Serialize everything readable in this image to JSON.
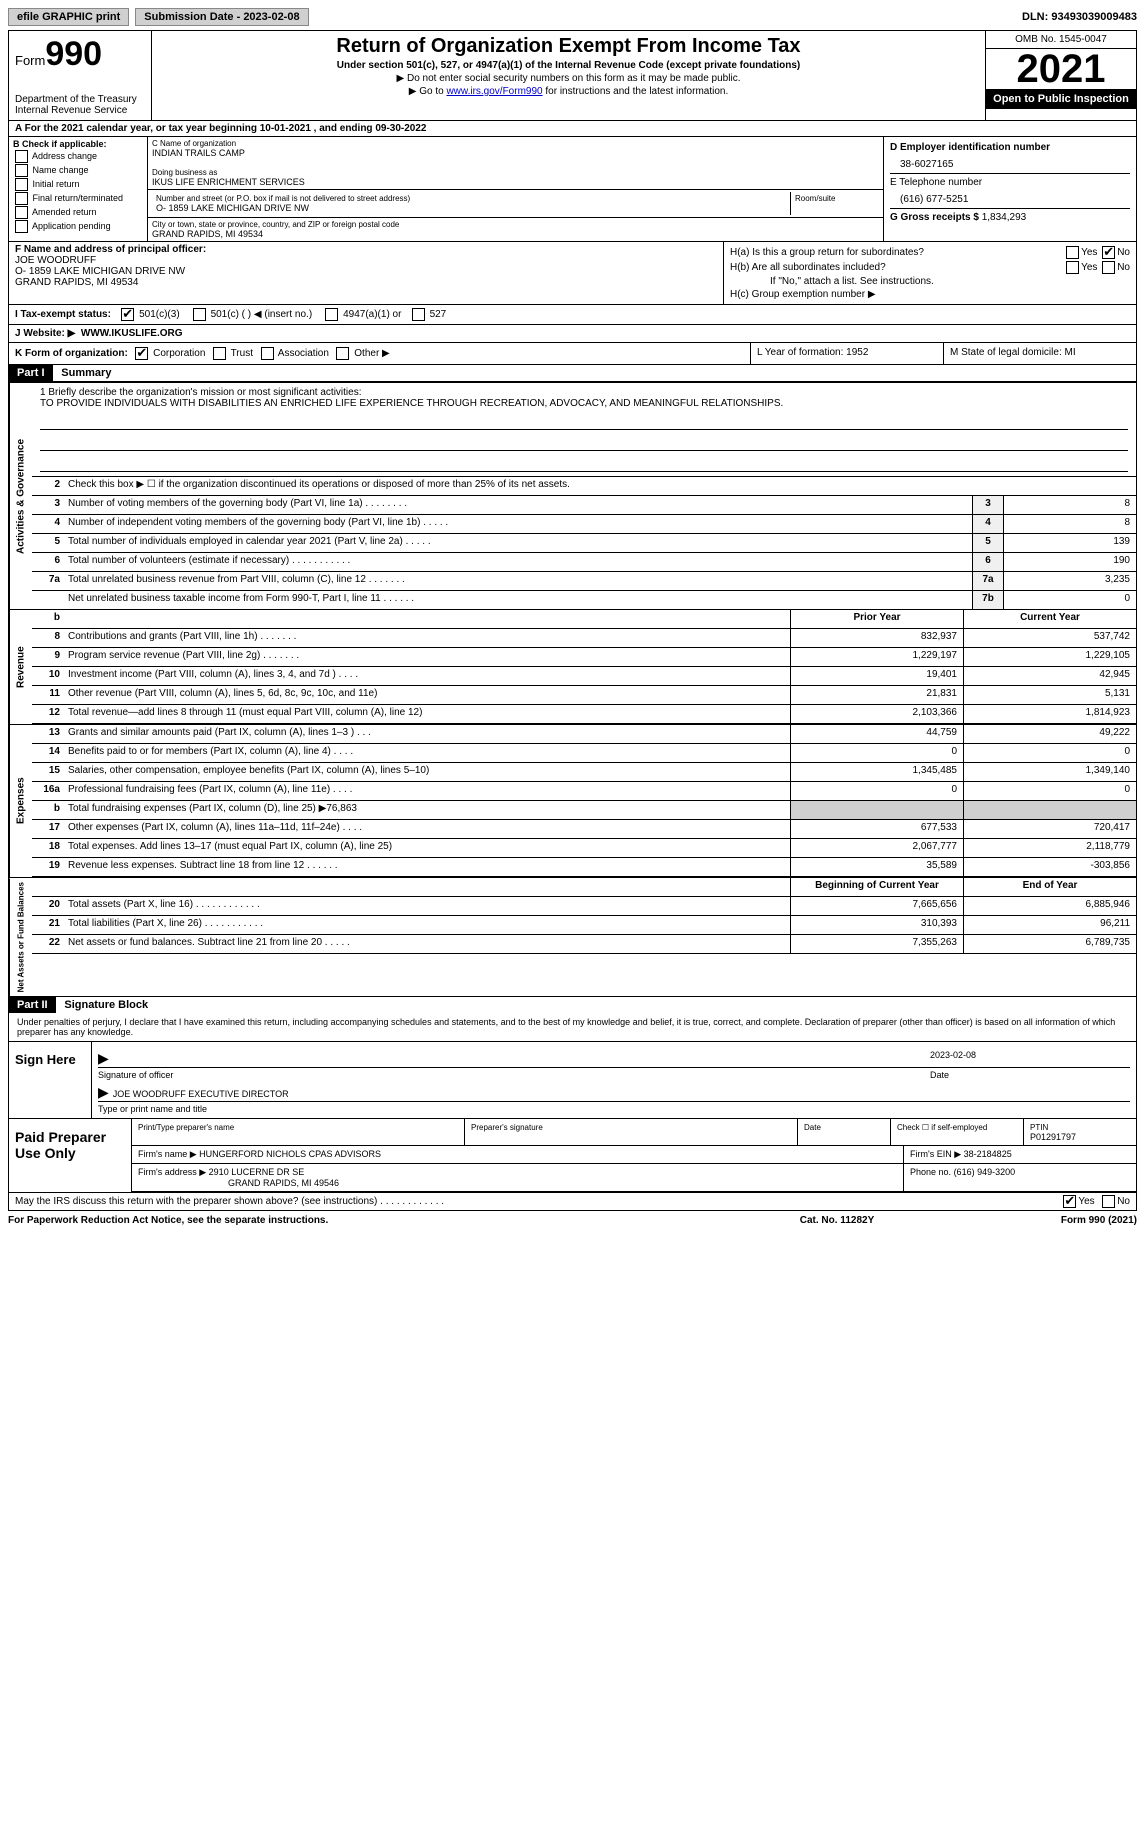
{
  "topbar": {
    "efile": "efile GRAPHIC print",
    "submission_label": "Submission Date - 2023-02-08",
    "dln": "DLN: 93493039009483"
  },
  "header": {
    "form_prefix": "Form",
    "form_num": "990",
    "dept": "Department of the Treasury Internal Revenue Service",
    "title": "Return of Organization Exempt From Income Tax",
    "subtitle": "Under section 501(c), 527, or 4947(a)(1) of the Internal Revenue Code (except private foundations)",
    "note1": "▶ Do not enter social security numbers on this form as it may be made public.",
    "note2_pre": "▶ Go to ",
    "note2_link": "www.irs.gov/Form990",
    "note2_post": " for instructions and the latest information.",
    "omb": "OMB No. 1545-0047",
    "year": "2021",
    "inspection": "Open to Public Inspection"
  },
  "period": "A For the 2021 calendar year, or tax year beginning 10-01-2021    , and ending 09-30-2022",
  "checkB": {
    "label": "B Check if applicable:",
    "opts": [
      "Address change",
      "Name change",
      "Initial return",
      "Final return/terminated",
      "Amended return",
      "Application pending"
    ]
  },
  "orgC": {
    "name_label": "C Name of organization",
    "name": "INDIAN TRAILS CAMP",
    "dba_label": "Doing business as",
    "dba": "IKUS LIFE ENRICHMENT SERVICES",
    "street_label": "Number and street (or P.O. box if mail is not delivered to street address)",
    "street": "O- 1859 LAKE MICHIGAN DRIVE NW",
    "room_label": "Room/suite",
    "city_label": "City or town, state or province, country, and ZIP or foreign postal code",
    "city": "GRAND RAPIDS, MI  49534"
  },
  "colD": {
    "ein_label": "D Employer identification number",
    "ein": "38-6027165",
    "tel_label": "E Telephone number",
    "tel": "(616) 677-5251",
    "gross_label": "G Gross receipts $",
    "gross": "1,834,293"
  },
  "sectionF": {
    "label": "F  Name and address of principal officer:",
    "name": "JOE WOODRUFF",
    "addr1": "O- 1859 LAKE MICHIGAN DRIVE NW",
    "addr2": "GRAND RAPIDS, MI  49534"
  },
  "sectionH": {
    "ha": "H(a)  Is this a group return for subordinates?",
    "hb": "H(b)  Are all subordinates included?",
    "hb_note": "If \"No,\" attach a list. See instructions.",
    "hc": "H(c)  Group exemption number ▶",
    "yes": "Yes",
    "no": "No"
  },
  "taxStatus": {
    "label": "I   Tax-exempt status:",
    "o1": "501(c)(3)",
    "o2": "501(c) (  ) ◀ (insert no.)",
    "o3": "4947(a)(1) or",
    "o4": "527"
  },
  "website": {
    "label": "J   Website: ▶",
    "val": "WWW.IKUSLIFE.ORG"
  },
  "kRow": {
    "k": "K Form of organization:",
    "opts": [
      "Corporation",
      "Trust",
      "Association",
      "Other ▶"
    ],
    "l": "L Year of formation: 1952",
    "m": "M State of legal domicile: MI"
  },
  "part1": {
    "header": "Part I",
    "title": "Summary",
    "mission_label": "1   Briefly describe the organization's mission or most significant activities:",
    "mission": "TO PROVIDE INDIVIDUALS WITH DISABILITIES AN ENRICHED LIFE EXPERIENCE THROUGH RECREATION, ADVOCACY, AND MEANINGFUL RELATIONSHIPS.",
    "line2": "Check this box ▶ ☐  if the organization discontinued its operations or disposed of more than 25% of its net assets.",
    "sideA": "Activities & Governance",
    "sideR": "Revenue",
    "sideE": "Expenses",
    "sideN": "Net Assets or Fund Balances"
  },
  "govLines": [
    {
      "n": "3",
      "t": "Number of voting members of the governing body (Part VI, line 1a)   .   .   .   .   .   .   .   .",
      "b": "3",
      "v": "8"
    },
    {
      "n": "4",
      "t": "Number of independent voting members of the governing body (Part VI, line 1b)   .   .   .   .   .",
      "b": "4",
      "v": "8"
    },
    {
      "n": "5",
      "t": "Total number of individuals employed in calendar year 2021 (Part V, line 2a)   .   .   .   .   .",
      "b": "5",
      "v": "139"
    },
    {
      "n": "6",
      "t": "Total number of volunteers (estimate if necessary)    .   .   .   .   .   .   .   .   .   .   .",
      "b": "6",
      "v": "190"
    },
    {
      "n": "7a",
      "t": "Total unrelated business revenue from Part VIII, column (C), line 12   .   .   .   .   .   .   .",
      "b": "7a",
      "v": "3,235"
    },
    {
      "n": "",
      "t": "Net unrelated business taxable income from Form 990-T, Part I, line 11   .   .   .   .   .   .",
      "b": "7b",
      "v": "0"
    }
  ],
  "colHeaders": {
    "prior": "Prior Year",
    "current": "Current Year",
    "begin": "Beginning of Current Year",
    "end": "End of Year"
  },
  "revLines": [
    {
      "n": "8",
      "t": "Contributions and grants (Part VIII, line 1h)   .   .   .   .   .   .   .",
      "p": "832,937",
      "c": "537,742"
    },
    {
      "n": "9",
      "t": "Program service revenue (Part VIII, line 2g)   .   .   .   .   .   .   .",
      "p": "1,229,197",
      "c": "1,229,105"
    },
    {
      "n": "10",
      "t": "Investment income (Part VIII, column (A), lines 3, 4, and 7d )   .   .   .   .",
      "p": "19,401",
      "c": "42,945"
    },
    {
      "n": "11",
      "t": "Other revenue (Part VIII, column (A), lines 5, 6d, 8c, 9c, 10c, and 11e)",
      "p": "21,831",
      "c": "5,131"
    },
    {
      "n": "12",
      "t": "Total revenue—add lines 8 through 11 (must equal Part VIII, column (A), line 12)",
      "p": "2,103,366",
      "c": "1,814,923"
    }
  ],
  "expLines": [
    {
      "n": "13",
      "t": "Grants and similar amounts paid (Part IX, column (A), lines 1–3 )   .   .   .",
      "p": "44,759",
      "c": "49,222"
    },
    {
      "n": "14",
      "t": "Benefits paid to or for members (Part IX, column (A), line 4)   .   .   .   .",
      "p": "0",
      "c": "0"
    },
    {
      "n": "15",
      "t": "Salaries, other compensation, employee benefits (Part IX, column (A), lines 5–10)",
      "p": "1,345,485",
      "c": "1,349,140"
    },
    {
      "n": "16a",
      "t": "Professional fundraising fees (Part IX, column (A), line 11e)   .   .   .   .",
      "p": "0",
      "c": "0"
    },
    {
      "n": "b",
      "t": "Total fundraising expenses (Part IX, column (D), line 25) ▶76,863",
      "p": "shade",
      "c": "shade"
    },
    {
      "n": "17",
      "t": "Other expenses (Part IX, column (A), lines 11a–11d, 11f–24e)   .   .   .   .",
      "p": "677,533",
      "c": "720,417"
    },
    {
      "n": "18",
      "t": "Total expenses. Add lines 13–17 (must equal Part IX, column (A), line 25)",
      "p": "2,067,777",
      "c": "2,118,779"
    },
    {
      "n": "19",
      "t": "Revenue less expenses. Subtract line 18 from line 12   .   .   .   .   .   .",
      "p": "35,589",
      "c": "-303,856"
    }
  ],
  "netLines": [
    {
      "n": "20",
      "t": "Total assets (Part X, line 16)   .   .   .   .   .   .   .   .   .   .   .   .",
      "p": "7,665,656",
      "c": "6,885,946"
    },
    {
      "n": "21",
      "t": "Total liabilities (Part X, line 26)   .   .   .   .   .   .   .   .   .   .   .",
      "p": "310,393",
      "c": "96,211"
    },
    {
      "n": "22",
      "t": "Net assets or fund balances. Subtract line 21 from line 20   .   .   .   .   .",
      "p": "7,355,263",
      "c": "6,789,735"
    }
  ],
  "part2": {
    "header": "Part II",
    "title": "Signature Block"
  },
  "sig": {
    "decl": "Under penalties of perjury, I declare that I have examined this return, including accompanying schedules and statements, and to the best of my knowledge and belief, it is true, correct, and complete. Declaration of preparer (other than officer) is based on all information of which preparer has any knowledge.",
    "sign_here": "Sign Here",
    "sig_officer": "Signature of officer",
    "date_val": "2023-02-08",
    "date": "Date",
    "name": "JOE WOODRUFF  EXECUTIVE DIRECTOR",
    "name_label": "Type or print name and title"
  },
  "preparer": {
    "label": "Paid Preparer Use Only",
    "print_label": "Print/Type preparer's name",
    "sig_label": "Preparer's signature",
    "date_label": "Date",
    "check_label": "Check ☐ if self-employed",
    "ptin_label": "PTIN",
    "ptin": "P01291797",
    "firm_name_label": "Firm's name   ▶",
    "firm_name": "HUNGERFORD NICHOLS CPAS ADVISORS",
    "firm_ein_label": "Firm's EIN ▶",
    "firm_ein": "38-2184825",
    "firm_addr_label": "Firm's address ▶",
    "firm_addr1": "2910 LUCERNE DR SE",
    "firm_addr2": "GRAND RAPIDS, MI  49546",
    "phone_label": "Phone no.",
    "phone": "(616) 949-3200"
  },
  "footer": {
    "discuss": "May the IRS discuss this return with the preparer shown above? (see instructions)   .   .   .   .   .   .   .   .   .   .   .   .",
    "yes": "Yes",
    "no": "No"
  },
  "bottom": {
    "paperwork": "For Paperwork Reduction Act Notice, see the separate instructions.",
    "cat": "Cat. No. 11282Y",
    "form": "Form 990 (2021)"
  }
}
